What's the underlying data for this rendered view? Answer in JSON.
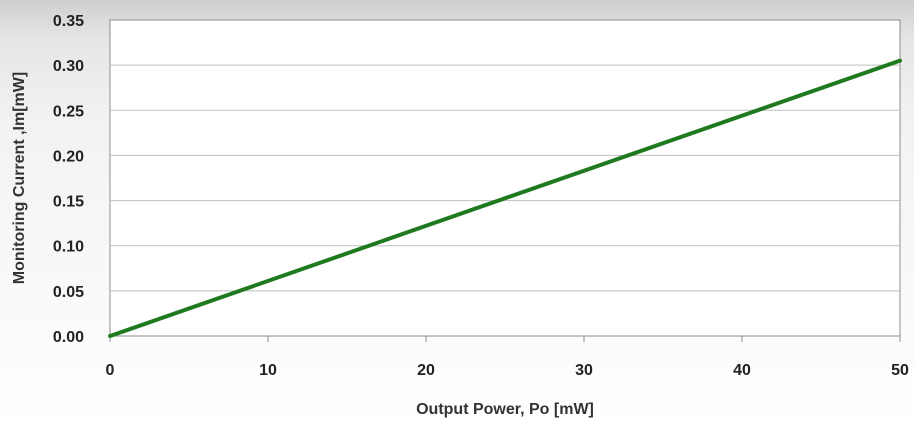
{
  "chart_data": {
    "type": "line",
    "title": "",
    "xlabel": "Output Power, Po [mW]",
    "ylabel": "Monitoring Current ,Im[mW]",
    "xlim": [
      0,
      50
    ],
    "ylim": [
      0,
      0.35
    ],
    "x_ticks": [
      "0",
      "10",
      "20",
      "30",
      "40",
      "50"
    ],
    "y_ticks": [
      "0.00",
      "0.05",
      "0.10",
      "0.15",
      "0.20",
      "0.25",
      "0.30",
      "0.35"
    ],
    "grid": "horizontal",
    "legend": "none",
    "series": [
      {
        "color": "#1f7a1f",
        "x": [
          0,
          50
        ],
        "y": [
          0,
          0.305
        ]
      }
    ]
  }
}
